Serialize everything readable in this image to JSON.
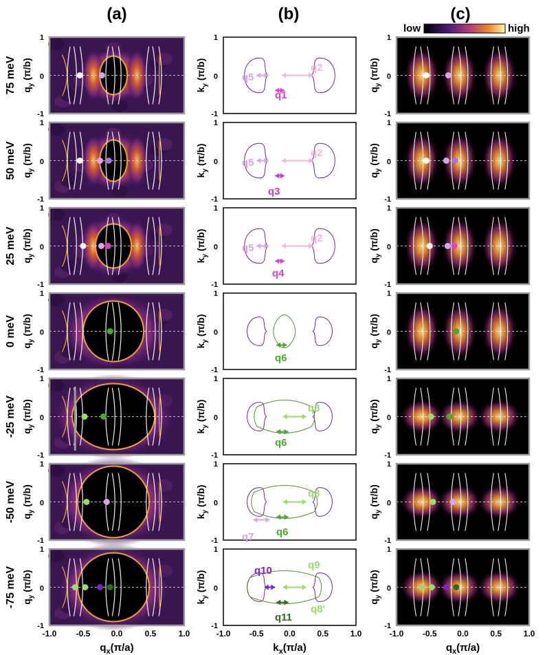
{
  "panel_letters": [
    "(a)",
    "(b)",
    "(c)"
  ],
  "energy_labels": [
    "75 meV",
    "50 meV",
    "25 meV",
    "0 meV",
    "-25 meV",
    "-50 meV",
    "-75 meV"
  ],
  "colorbar": {
    "low": "low",
    "high": "high"
  },
  "axis": {
    "qy_label": "q",
    "qy_sub": "y",
    "qy_unit": " (π/b)",
    "ky_label": "k",
    "ky_sub": "y",
    "ky_unit": " (π/b)",
    "qx_label": "q",
    "qx_sub": "x",
    "qx_unit": "(π/a)",
    "kx_label": "k",
    "kx_sub": "x",
    "kx_unit": "(π/a)",
    "y_ticks": [
      "1",
      "0",
      "-1"
    ],
    "x_ticks": [
      "-1.0",
      "-0.5",
      "0.0",
      "0.5",
      "1.0"
    ]
  },
  "qvec_labels": [
    "q5",
    "q2",
    "q1",
    "q5",
    "q2",
    "q3",
    "q5",
    "q2",
    "q4",
    "q6",
    "q8",
    "q6",
    "q8",
    "q7",
    "q6",
    "q10",
    "q9",
    "q11",
    "q8'"
  ],
  "colors": {
    "c_pink_light": "#f2b6d8",
    "c_violet_light": "#d8a6e8",
    "c_violet": "#b070d8",
    "c_magenta": "#e040c8",
    "c_magenta_dark": "#c23ec4",
    "c_green": "#4aa82a",
    "c_green_light": "#9adb6a",
    "c_green_dark": "#2e6b1f",
    "c_purple": "#7a22c8",
    "contour_purple": "#6b2a86",
    "contour_green": "#5a8a3a",
    "heat_dark": "#2a0f4a",
    "heat_mid": "#7a2a78",
    "heat_orange": "#e06020",
    "heat_yellow": "#ffe070",
    "frame_gray": "#9a9a9a"
  }
}
